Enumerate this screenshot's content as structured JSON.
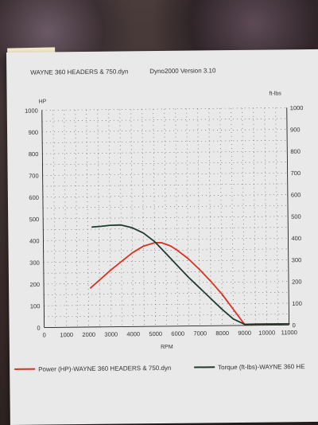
{
  "header": {
    "file_title": "WAYNE 360 HEADERS & 750.dyn",
    "app_version": "Dyno2000  Version 3.10"
  },
  "chart_data": {
    "type": "line",
    "title": "",
    "xlabel": "RPM",
    "ylabel_left": "HP",
    "ylabel_right": "ft-lbs",
    "xlim": [
      0,
      11000
    ],
    "ylim": [
      0,
      1000
    ],
    "x_ticks": [
      "0",
      "1000",
      "2000",
      "3000",
      "4000",
      "5000",
      "6000",
      "7000",
      "8000",
      "9000",
      "10000",
      "11000"
    ],
    "y_ticks": [
      "0",
      "100",
      "200",
      "300",
      "400",
      "500",
      "600",
      "700",
      "800",
      "900",
      "1000"
    ],
    "grid": true,
    "legend_position": "bottom",
    "series": [
      {
        "name": "Power (HP)-WAYNE 360 HEADERS & 750.dyn",
        "color": "#d8321f",
        "x": [
          2100,
          2500,
          3000,
          3500,
          4000,
          4500,
          5000,
          5300,
          5700,
          6000,
          6500,
          7000,
          7500,
          8000,
          8500,
          9000,
          9500,
          10000,
          11000
        ],
        "y": [
          180,
          215,
          260,
          300,
          340,
          370,
          385,
          385,
          370,
          350,
          310,
          260,
          205,
          145,
          75,
          5,
          5,
          5,
          5
        ]
      },
      {
        "name": "Torque (ft-lbs)-WAYNE 360 HE",
        "color": "#1e3b2c",
        "x": [
          2200,
          2600,
          3000,
          3500,
          4000,
          4500,
          5000,
          5500,
          6000,
          6500,
          7000,
          7500,
          8000,
          8500,
          9000,
          9500,
          10000,
          11000
        ],
        "y": [
          460,
          463,
          467,
          468,
          455,
          430,
          390,
          335,
          280,
          225,
          175,
          125,
          75,
          30,
          5,
          5,
          5,
          5
        ]
      }
    ]
  }
}
